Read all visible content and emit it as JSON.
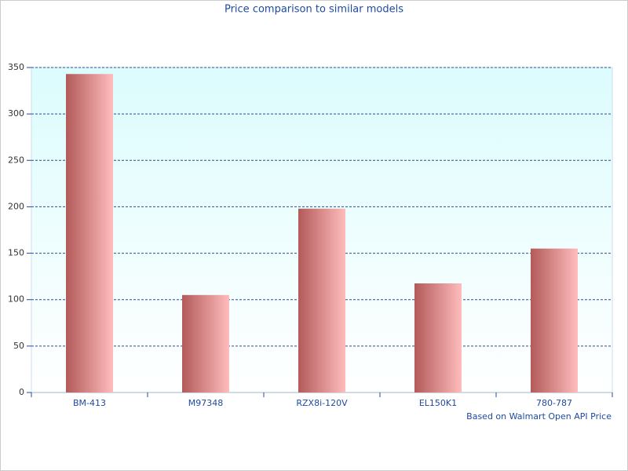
{
  "chart_data": {
    "type": "bar",
    "title": "Price comparison to similar models",
    "annotation": "Based on Walmart Open API Price",
    "categories": [
      "BM-413",
      "M97348",
      "RZX8i-120V",
      "EL150K1",
      "780-787"
    ],
    "values": [
      343,
      105,
      198,
      117.5,
      155
    ],
    "color": [
      "#b35a5a",
      "#ffbcbc"
    ],
    "ylim": [
      0,
      350
    ],
    "yticks": [
      0,
      50,
      100,
      150,
      200,
      250,
      300,
      350
    ],
    "grid": true
  }
}
